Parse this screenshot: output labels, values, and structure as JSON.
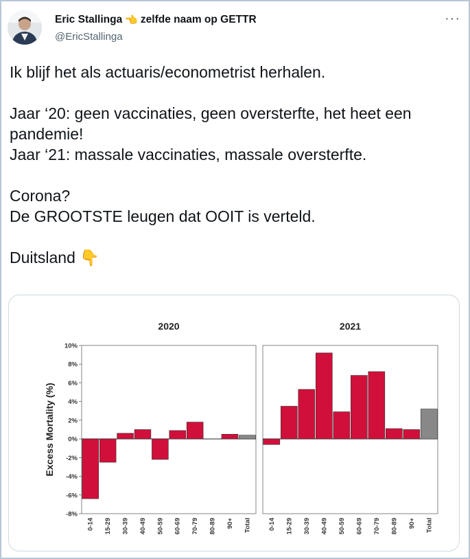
{
  "tweet": {
    "display_name": "Eric Stallinga",
    "name_emoji": "👈",
    "name_suffix": "zelfde naam op GETTR",
    "handle": "@EricStallinga",
    "more_label": "···",
    "text": "Ik blijf het als actuaris/econometrist herhalen.\n\nJaar ‘20: geen vaccinaties, geen oversterfte, het heet een pandemie!\nJaar ‘21: massale vaccinaties, massale oversterfte.\n\nCorona?\nDe GROOTSTE leugen dat OOIT is verteld.\n\nDuitsland 👇"
  },
  "colors": {
    "bar": "#d0103a",
    "total_bar": "#888888",
    "text_muted": "#536471"
  },
  "chart_data": {
    "type": "bar",
    "ylabel": "Excess Mortality (%)",
    "ylim": [
      -8,
      10
    ],
    "yticks": [
      "10%",
      "8%",
      "6%",
      "4%",
      "2%",
      "0%",
      "-2%",
      "-4%",
      "-6%",
      "-8%"
    ],
    "ytick_values": [
      10,
      8,
      6,
      4,
      2,
      0,
      -2,
      -4,
      -6,
      -8
    ],
    "categories": [
      "0-14",
      "15-29",
      "30-39",
      "40-49",
      "50-59",
      "60-69",
      "70-79",
      "80-89",
      "90+",
      "Total"
    ],
    "panels": [
      {
        "title": "2020",
        "values": [
          -6.4,
          -2.5,
          0.6,
          1.0,
          -2.2,
          0.9,
          1.8,
          0.0,
          0.5,
          0.4
        ]
      },
      {
        "title": "2021",
        "values": [
          -0.6,
          3.5,
          5.3,
          9.2,
          2.9,
          6.8,
          7.2,
          1.1,
          1.0,
          3.2
        ]
      }
    ]
  }
}
